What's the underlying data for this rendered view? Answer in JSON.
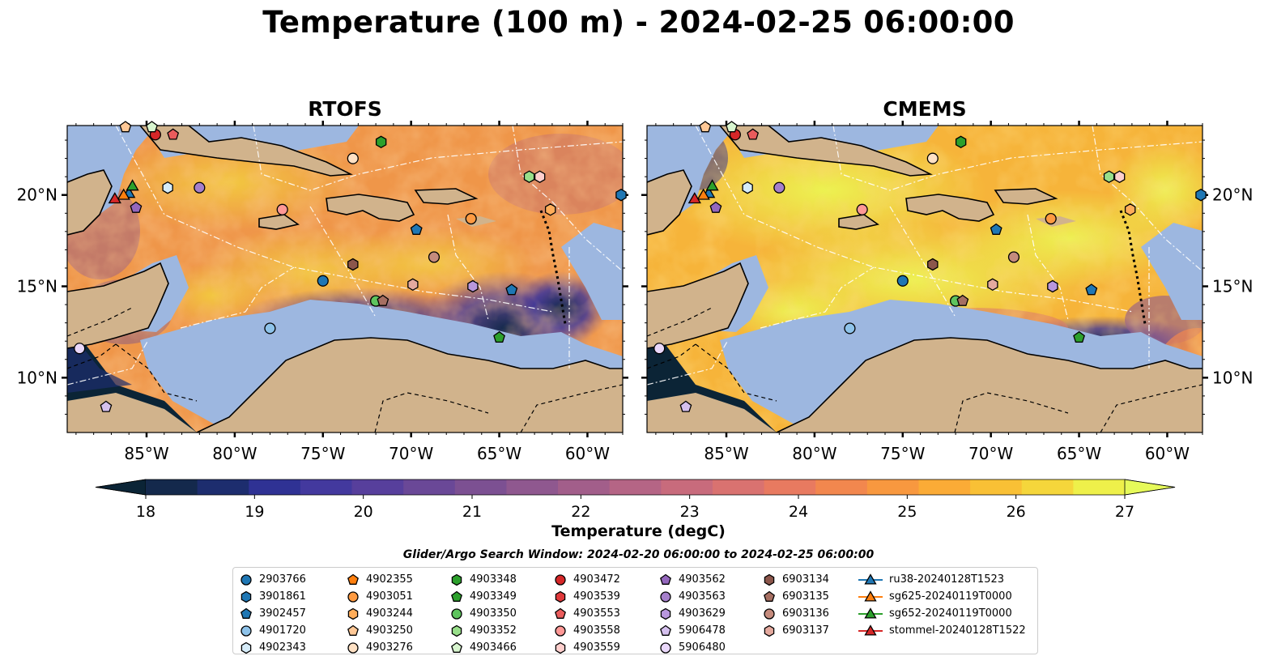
{
  "title": "Temperature (100 m) - 2024-02-25 06:00:00",
  "panels": [
    {
      "title": "RTOFS"
    },
    {
      "title": "CMEMS"
    }
  ],
  "lon_ticks": [
    "85°W",
    "80°W",
    "75°W",
    "70°W",
    "65°W",
    "60°W"
  ],
  "lat_ticks": [
    "20°N",
    "15°N",
    "10°N"
  ],
  "colorbar": {
    "label": "Temperature (degC)",
    "ticks": [
      "18",
      "19",
      "20",
      "21",
      "22",
      "23",
      "24",
      "25",
      "26",
      "27"
    ],
    "range": [
      18,
      27
    ],
    "extend": "both",
    "colors": [
      "#0b2436",
      "#14294c",
      "#1d2d6e",
      "#2f3294",
      "#43399e",
      "#573f9c",
      "#6a4897",
      "#7c5092",
      "#8f588f",
      "#a25e8a",
      "#b56585",
      "#c86b7c",
      "#d97270",
      "#e87a60",
      "#f2874e",
      "#f8983f",
      "#fbab36",
      "#f9c035",
      "#f5d63b",
      "#eef04a",
      "#e6fa5a"
    ]
  },
  "colors": {
    "land": "#d1b38c",
    "shelf": "#9db7e0",
    "deep_cold": "#0b2436"
  },
  "search_window": "Glider/Argo Search Window: 2024-02-20 06:00:00 to 2024-02-25 06:00:00",
  "legend": [
    [
      {
        "label": "2903766",
        "shape": "circle",
        "color": "#1f77b4"
      },
      {
        "label": "3901861",
        "shape": "hexagon",
        "color": "#1f77b4"
      },
      {
        "label": "3902457",
        "shape": "pentagon",
        "color": "#1f77b4"
      },
      {
        "label": "4901720",
        "shape": "circle",
        "color": "#8ec3ea"
      },
      {
        "label": "4902343",
        "shape": "hexagon",
        "color": "#d6ecf9"
      }
    ],
    [
      {
        "label": "4902355",
        "shape": "pentagon",
        "color": "#ff7f0e"
      },
      {
        "label": "4903051",
        "shape": "circle",
        "color": "#ff9b42"
      },
      {
        "label": "4903244",
        "shape": "hexagon",
        "color": "#ffad5a"
      },
      {
        "label": "4903250",
        "shape": "pentagon",
        "color": "#ffc896"
      },
      {
        "label": "4903276",
        "shape": "circle",
        "color": "#ffe1c4"
      }
    ],
    [
      {
        "label": "4903348",
        "shape": "hexagon",
        "color": "#2ca02c"
      },
      {
        "label": "4903349",
        "shape": "pentagon",
        "color": "#2ca02c"
      },
      {
        "label": "4903350",
        "shape": "circle",
        "color": "#5ec45e"
      },
      {
        "label": "4903352",
        "shape": "hexagon",
        "color": "#98df8a"
      },
      {
        "label": "4903466",
        "shape": "pentagon",
        "color": "#d8f5cf"
      }
    ],
    [
      {
        "label": "4903472",
        "shape": "circle",
        "color": "#d62728"
      },
      {
        "label": "4903539",
        "shape": "hexagon",
        "color": "#e0393b"
      },
      {
        "label": "4903553",
        "shape": "pentagon",
        "color": "#ea5c5c"
      },
      {
        "label": "4903558",
        "shape": "circle",
        "color": "#ff9896"
      },
      {
        "label": "4903559",
        "shape": "hexagon",
        "color": "#ffcfcd"
      }
    ],
    [
      {
        "label": "4903562",
        "shape": "pentagon",
        "color": "#9467bd"
      },
      {
        "label": "4903563",
        "shape": "circle",
        "color": "#a57fcb"
      },
      {
        "label": "4903629",
        "shape": "hexagon",
        "color": "#b897dd"
      },
      {
        "label": "5906478",
        "shape": "pentagon",
        "color": "#d5c0ee"
      },
      {
        "label": "5906480",
        "shape": "circle",
        "color": "#ead8fb"
      }
    ],
    [
      {
        "label": "6903134",
        "shape": "hexagon",
        "color": "#8c564b"
      },
      {
        "label": "6903135",
        "shape": "pentagon",
        "color": "#a66f62"
      },
      {
        "label": "6903136",
        "shape": "circle",
        "color": "#c58b7d"
      },
      {
        "label": "6903137",
        "shape": "hexagon",
        "color": "#e4a99e"
      }
    ],
    [
      {
        "label": "ru38-20240128T1523",
        "shape": "triangle",
        "color": "#1f77b4"
      },
      {
        "label": "sg625-20240119T0000",
        "shape": "triangle",
        "color": "#ff7f0e"
      },
      {
        "label": "sg652-20240119T0000",
        "shape": "triangle",
        "color": "#2ca02c"
      },
      {
        "label": "stommel-20240128T1522",
        "shape": "triangle",
        "color": "#d62728"
      }
    ]
  ],
  "markers": [
    {
      "id": "4903472",
      "lon": -84.5,
      "lat": 23.3
    },
    {
      "id": "4903553",
      "lon": -83.5,
      "lat": 23.3
    },
    {
      "id": "4903466",
      "lon": -84.7,
      "lat": 23.9
    },
    {
      "id": "4903250",
      "lon": -86.2,
      "lat": 23.9
    },
    {
      "id": "4903348",
      "lon": -71.7,
      "lat": 22.9
    },
    {
      "id": "4903276",
      "lon": -73.3,
      "lat": 22.0
    },
    {
      "id": "4903352",
      "lon": -63.3,
      "lat": 21.0
    },
    {
      "id": "4903559",
      "lon": -62.7,
      "lat": 21.0
    },
    {
      "id": "4902343",
      "lon": -83.8,
      "lat": 20.4
    },
    {
      "id": "4903563",
      "lon": -82.0,
      "lat": 20.4
    },
    {
      "id": "4903558",
      "lon": -77.3,
      "lat": 19.2
    },
    {
      "id": "4903051",
      "lon": -66.6,
      "lat": 18.7
    },
    {
      "id": "4903244",
      "lon": -62.1,
      "lat": 19.2
    },
    {
      "id": "3901861",
      "lon": -57.9,
      "lat": 20.0
    },
    {
      "id": "3902457",
      "lon": -69.7,
      "lat": 18.1
    },
    {
      "id": "4903562",
      "lon": -85.6,
      "lat": 19.3
    },
    {
      "id": "6903134",
      "lon": -73.3,
      "lat": 16.2
    },
    {
      "id": "6903136",
      "lon": -68.7,
      "lat": 16.6
    },
    {
      "id": "2903766",
      "lon": -75.0,
      "lat": 15.3
    },
    {
      "id": "6903137",
      "lon": -69.9,
      "lat": 15.1
    },
    {
      "id": "4903629",
      "lon": -66.5,
      "lat": 15.0
    },
    {
      "id": "3902457",
      "lon": -64.3,
      "lat": 14.8
    },
    {
      "id": "4903350",
      "lon": -72.0,
      "lat": 14.2
    },
    {
      "id": "6903135",
      "lon": -71.6,
      "lat": 14.2
    },
    {
      "id": "4903349",
      "lon": -65.0,
      "lat": 12.2
    },
    {
      "id": "4901720",
      "lon": -78.0,
      "lat": 12.7
    },
    {
      "id": "5906480",
      "lon": -88.8,
      "lat": 11.6
    },
    {
      "id": "5906478",
      "lon": -87.3,
      "lat": 8.4
    },
    {
      "id": "ru38-20240128T1523",
      "lon": -86.0,
      "lat": 20.1
    },
    {
      "id": "sg625-20240119T0000",
      "lon": -86.3,
      "lat": 20.0
    },
    {
      "id": "sg652-20240119T0000",
      "lon": -85.8,
      "lat": 20.5
    },
    {
      "id": "stommel-20240128T1522",
      "lon": -86.8,
      "lat": 19.8
    }
  ]
}
